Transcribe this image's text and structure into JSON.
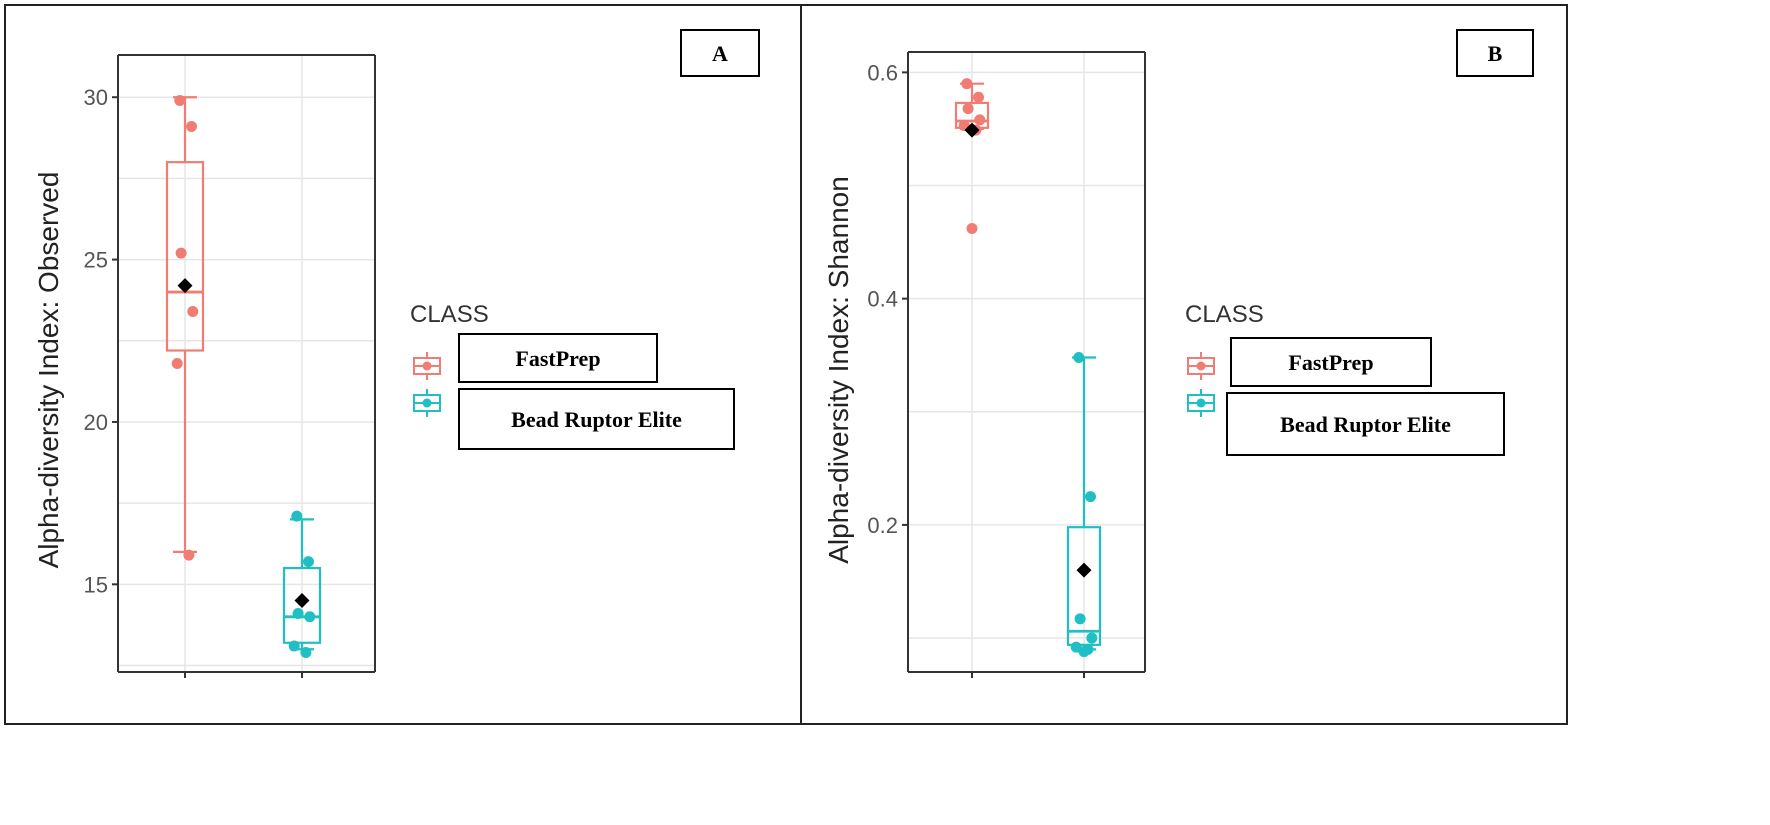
{
  "colors": {
    "fastprep": "#f07c73",
    "bead": "#1fbfc4",
    "grid": "#e6e6e6",
    "axis": "#333333",
    "mean": "#000000"
  },
  "chart_data": [
    {
      "type": "box",
      "panel_label": "A",
      "title": "",
      "xlabel": "",
      "ylabel": "Alpha-diversity Index: Observed",
      "ylim": [
        12.3,
        31.3
      ],
      "yticks": [
        15,
        20,
        25,
        30
      ],
      "ytick_labels": [
        "15",
        "20",
        "25",
        "30"
      ],
      "grid": true,
      "legend": {
        "title": "CLASS",
        "position": "right",
        "entries": [
          "FastPrep",
          "Bead Ruptor Elite"
        ]
      },
      "categories": [
        "FastPrep",
        "Bead Ruptor Elite"
      ],
      "series": [
        {
          "name": "FastPrep",
          "color_key": "fastprep",
          "whisker_low": 16,
          "q1": 22.2,
          "median": 24,
          "q3": 28,
          "whisker_high": 30,
          "mean": 24.2,
          "points": [
            29.9,
            29.1,
            25.2,
            23.4,
            21.8,
            15.9
          ]
        },
        {
          "name": "Bead Ruptor Elite",
          "color_key": "bead",
          "whisker_low": 13,
          "q1": 13.2,
          "median": 14,
          "q3": 15.5,
          "whisker_high": 17,
          "mean": 14.5,
          "points": [
            17.1,
            15.7,
            14.1,
            14.0,
            13.1,
            12.9
          ]
        }
      ]
    },
    {
      "type": "box",
      "panel_label": "B",
      "title": "",
      "xlabel": "",
      "ylabel": "Alpha-diversity Index: Shannon",
      "ylim": [
        0.07,
        0.618
      ],
      "yticks": [
        0.2,
        0.4,
        0.6
      ],
      "ytick_labels": [
        "0.2",
        "0.4",
        "0.6"
      ],
      "grid": true,
      "legend": {
        "title": "CLASS",
        "position": "right",
        "entries": [
          "FastPrep",
          "Bead Ruptor Elite"
        ]
      },
      "categories": [
        "FastPrep",
        "Bead Ruptor Elite"
      ],
      "series": [
        {
          "name": "FastPrep",
          "color_key": "fastprep",
          "whisker_low": 0.55,
          "q1": 0.551,
          "median": 0.557,
          "q3": 0.573,
          "whisker_high": 0.59,
          "mean": 0.549,
          "points": [
            0.59,
            0.578,
            0.568,
            0.558,
            0.553,
            0.549,
            0.462
          ]
        },
        {
          "name": "Bead Ruptor Elite",
          "color_key": "bead",
          "whisker_low": 0.09,
          "q1": 0.094,
          "median": 0.106,
          "q3": 0.198,
          "whisker_high": 0.348,
          "mean": 0.16,
          "points": [
            0.348,
            0.225,
            0.117,
            0.1,
            0.092,
            0.09,
            0.088
          ]
        }
      ]
    }
  ]
}
